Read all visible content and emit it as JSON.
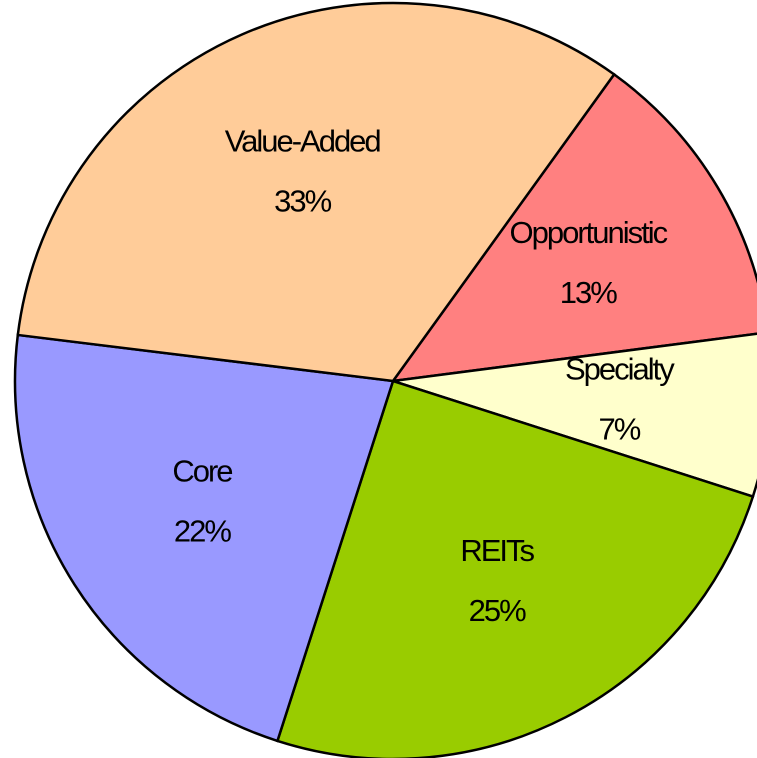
{
  "chart_data": {
    "type": "pie",
    "categories": [
      "Opportunistic",
      "Specialty",
      "REITs",
      "Core",
      "Value-Added"
    ],
    "values": [
      13,
      7,
      25,
      22,
      33
    ],
    "value_labels": [
      "13%",
      "7%",
      "25%",
      "22%",
      "33%"
    ],
    "colors": [
      "#ff8080",
      "#ffffcc",
      "#99cc00",
      "#9999ff",
      "#ffcc99"
    ]
  }
}
